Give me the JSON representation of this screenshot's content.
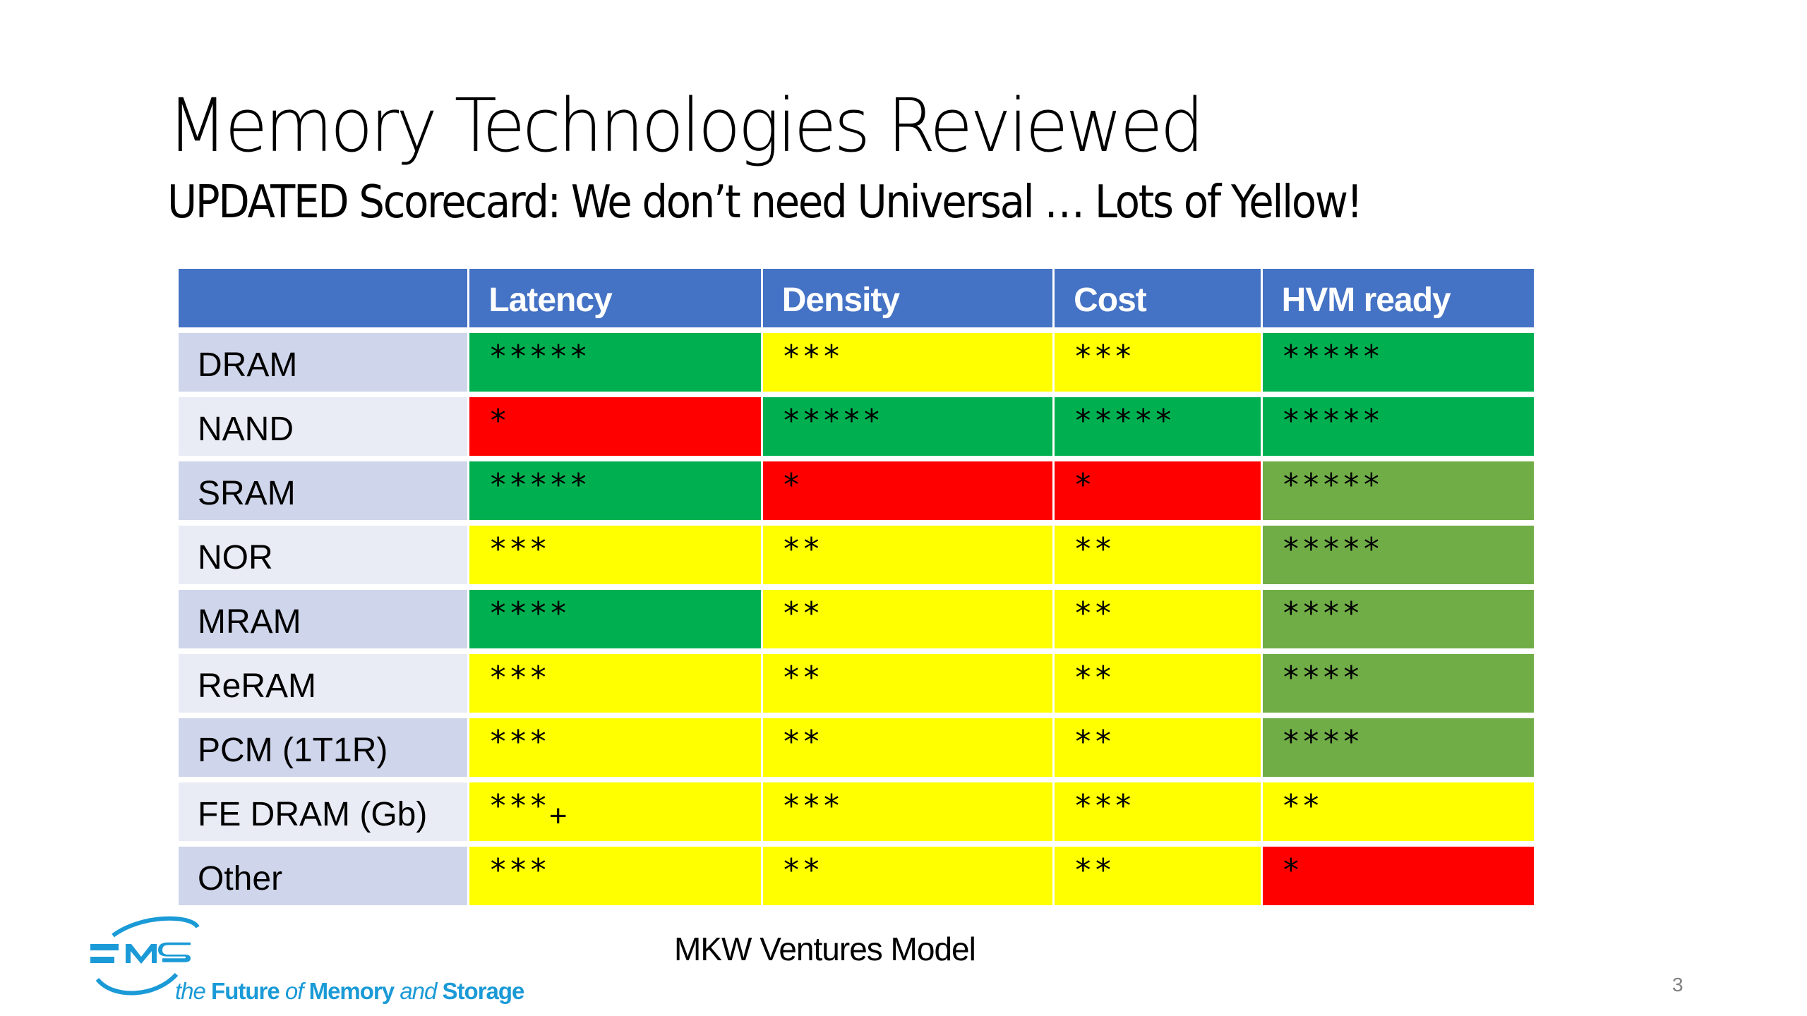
{
  "slide": {
    "title": "Memory Technologies Reviewed",
    "subtitle": "UPDATED Scorecard: We don’t need Universal … Lots of Yellow!",
    "source_note": "MKW Ventures Model",
    "page_number": "3"
  },
  "logo": {
    "mark_text": "FMS",
    "tagline": {
      "the": "the",
      "future": "Future",
      "of": "of",
      "memory": "Memory",
      "and": "and",
      "storage": "Storage"
    },
    "brand_color": "#1a9ad6"
  },
  "colors": {
    "header": "#4472c4",
    "green": "#00b050",
    "light_green": "#70ad47",
    "yellow": "#ffff00",
    "red": "#ff0000",
    "label_dark": "#cfd5ea",
    "label_light": "#e9ebf5"
  },
  "chart_data": {
    "type": "table",
    "title": "Memory Technologies Reviewed",
    "columns": [
      "",
      "Latency",
      "Density",
      "Cost",
      "HVM ready"
    ],
    "rows": [
      {
        "tech": "DRAM",
        "cells": [
          {
            "value": "*****",
            "rating": 5,
            "color": "green"
          },
          {
            "value": "***",
            "rating": 3,
            "color": "yellow"
          },
          {
            "value": "***",
            "rating": 3,
            "color": "yellow"
          },
          {
            "value": "*****",
            "rating": 5,
            "color": "green"
          }
        ]
      },
      {
        "tech": "NAND",
        "cells": [
          {
            "value": "*",
            "rating": 1,
            "color": "red"
          },
          {
            "value": "*****",
            "rating": 5,
            "color": "green"
          },
          {
            "value": "*****",
            "rating": 5,
            "color": "green"
          },
          {
            "value": "*****",
            "rating": 5,
            "color": "green"
          }
        ]
      },
      {
        "tech": "SRAM",
        "cells": [
          {
            "value": "*****",
            "rating": 5,
            "color": "green"
          },
          {
            "value": "*",
            "rating": 1,
            "color": "red"
          },
          {
            "value": "*",
            "rating": 1,
            "color": "red"
          },
          {
            "value": "*****",
            "rating": 5,
            "color": "light_green"
          }
        ]
      },
      {
        "tech": "NOR",
        "cells": [
          {
            "value": "***",
            "rating": 3,
            "color": "yellow"
          },
          {
            "value": "**",
            "rating": 2,
            "color": "yellow"
          },
          {
            "value": "**",
            "rating": 2,
            "color": "yellow"
          },
          {
            "value": "*****",
            "rating": 5,
            "color": "light_green"
          }
        ]
      },
      {
        "tech": "MRAM",
        "cells": [
          {
            "value": "****",
            "rating": 4,
            "color": "green"
          },
          {
            "value": "**",
            "rating": 2,
            "color": "yellow"
          },
          {
            "value": "**",
            "rating": 2,
            "color": "yellow"
          },
          {
            "value": "****",
            "rating": 4,
            "color": "light_green"
          }
        ]
      },
      {
        "tech": "ReRAM",
        "cells": [
          {
            "value": "***",
            "rating": 3,
            "color": "yellow"
          },
          {
            "value": "**",
            "rating": 2,
            "color": "yellow"
          },
          {
            "value": "**",
            "rating": 2,
            "color": "yellow"
          },
          {
            "value": "****",
            "rating": 4,
            "color": "light_green"
          }
        ]
      },
      {
        "tech": "PCM (1T1R)",
        "cells": [
          {
            "value": "***",
            "rating": 3,
            "color": "yellow"
          },
          {
            "value": "**",
            "rating": 2,
            "color": "yellow"
          },
          {
            "value": "**",
            "rating": 2,
            "color": "yellow"
          },
          {
            "value": "****",
            "rating": 4,
            "color": "light_green"
          }
        ]
      },
      {
        "tech": "FE DRAM (Gb)",
        "cells": [
          {
            "value": "***",
            "suffix": "+",
            "rating": 3,
            "color": "yellow"
          },
          {
            "value": "***",
            "rating": 3,
            "color": "yellow"
          },
          {
            "value": "***",
            "rating": 3,
            "color": "yellow"
          },
          {
            "value": "**",
            "rating": 2,
            "color": "yellow"
          }
        ]
      },
      {
        "tech": "Other",
        "cells": [
          {
            "value": "***",
            "rating": 3,
            "color": "yellow"
          },
          {
            "value": "**",
            "rating": 2,
            "color": "yellow"
          },
          {
            "value": "**",
            "rating": 2,
            "color": "yellow"
          },
          {
            "value": "*",
            "rating": 1,
            "color": "red"
          }
        ]
      }
    ]
  }
}
